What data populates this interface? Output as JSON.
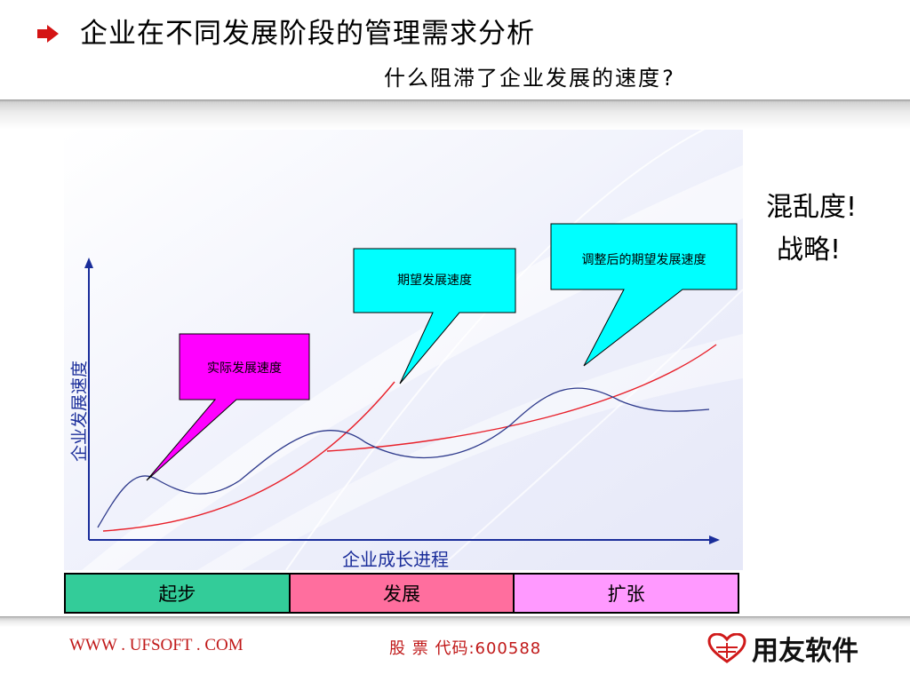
{
  "header": {
    "title": "企业在不同发展阶段的管理需求分析",
    "subtitle": "什么阻滞了企业发展的速度?"
  },
  "diagram": {
    "y_axis_label": "企业发展速度",
    "x_axis_label": "企业成长进程",
    "callouts": {
      "actual": "实际发展速度",
      "expected": "期望发展速度",
      "adjusted": "调整后的期望发展速度"
    },
    "callout_colors": {
      "actual": "#ff00ff",
      "expected": "#00ffff",
      "adjusted": "#00ffff"
    },
    "curve_colors": {
      "actual": "#2e3a8c",
      "expected": "#e8202a"
    },
    "stages": [
      {
        "label": "起步",
        "color": "#33cc99"
      },
      {
        "label": "发展",
        "color": "#ff6e9e"
      },
      {
        "label": "扩张",
        "color": "#ff99ff"
      }
    ]
  },
  "side_notes": [
    "混乱度!",
    "战略!"
  ],
  "footer": {
    "website": "WWW . UFSOFT . COM",
    "stock_code": "股 票 代码:600588",
    "logo_text": "用友软件"
  }
}
